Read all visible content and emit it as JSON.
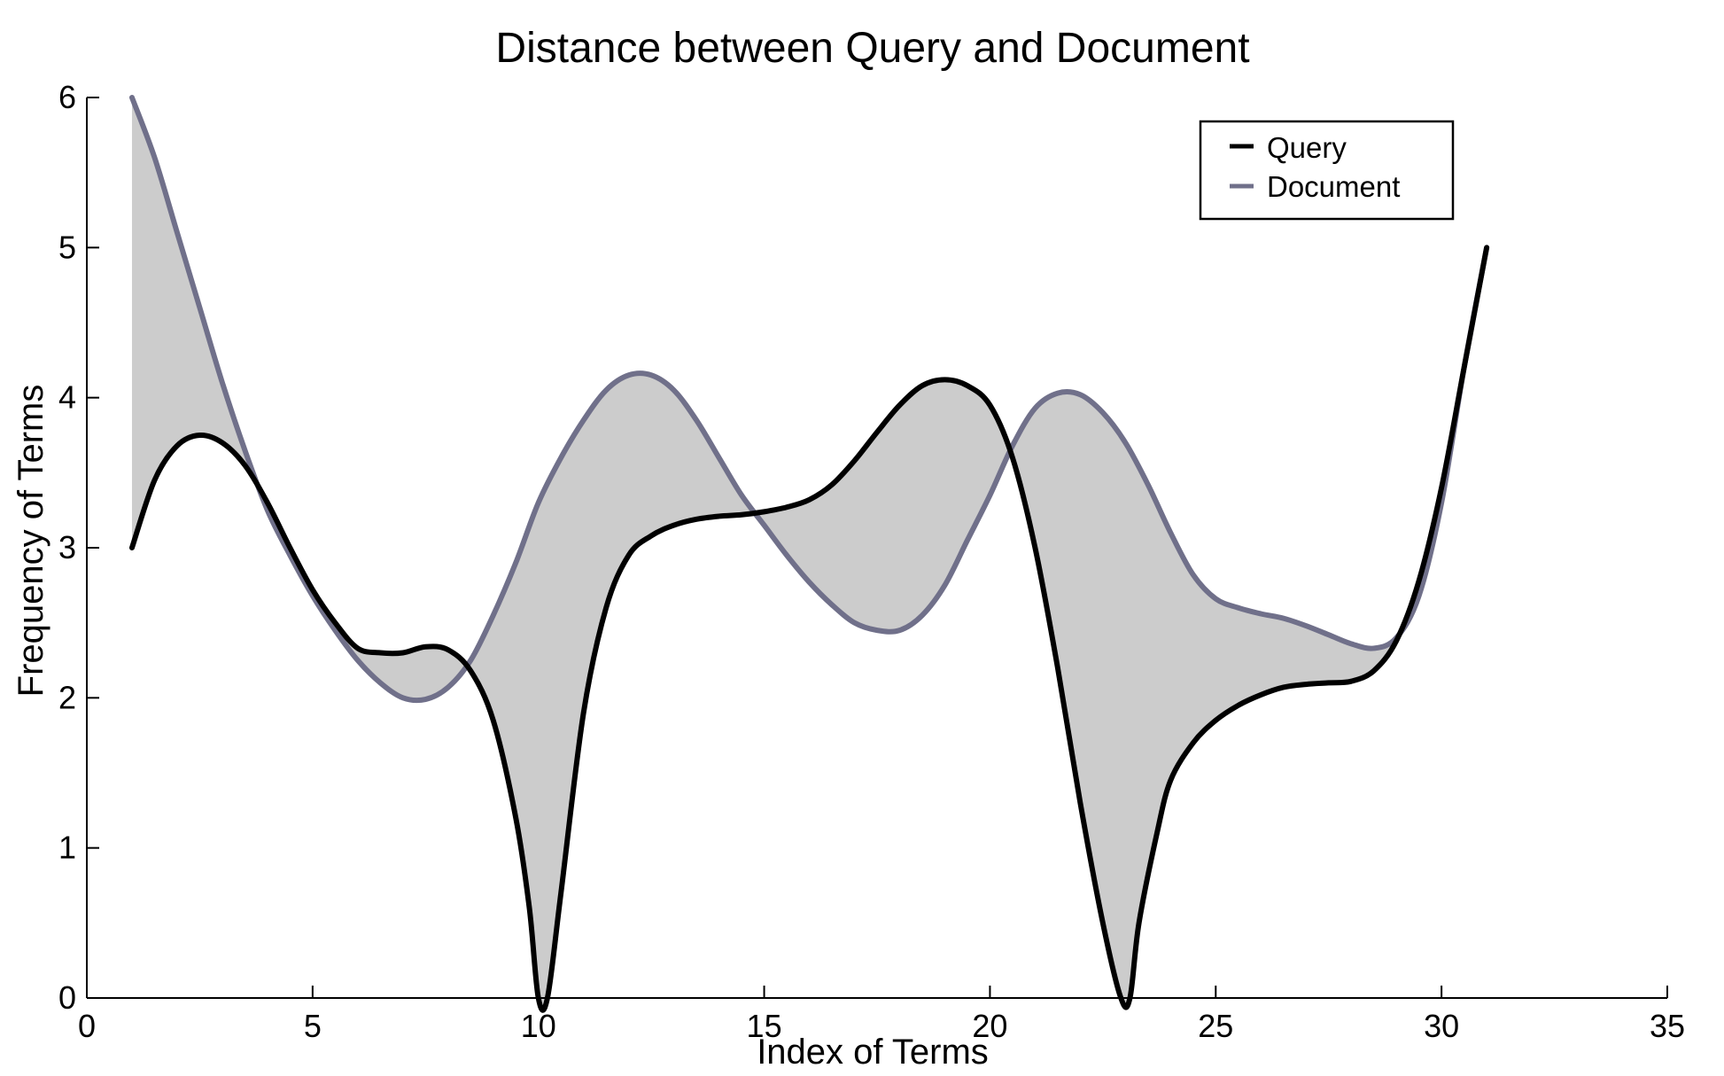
{
  "chart_data": {
    "type": "line",
    "title": "Distance between Query and Document",
    "xlabel": "Index of Terms",
    "ylabel": "Frequency of Terms",
    "xlim": [
      0,
      35
    ],
    "ylim": [
      0,
      6
    ],
    "xticks": [
      0,
      5,
      10,
      15,
      20,
      25,
      30,
      35
    ],
    "yticks": [
      0,
      1,
      2,
      3,
      4,
      5,
      6
    ],
    "xtick_labels": [
      "0",
      "5",
      "10",
      "15",
      "20",
      "25",
      "30",
      "35"
    ],
    "ytick_labels": [
      "0",
      "1",
      "2",
      "3",
      "4",
      "5",
      "6"
    ],
    "legend_position": "top-right",
    "fill_between": "series difference shaded gray",
    "colors": {
      "query": "#000000",
      "document": "#70708a",
      "fill": "#cccccc"
    },
    "series": [
      {
        "name": "Query",
        "x": [
          1,
          1.5,
          2,
          2.5,
          3,
          3.5,
          4,
          4.5,
          5,
          5.5,
          6,
          6.5,
          7,
          7.5,
          8,
          8.5,
          9,
          9.5,
          9.8,
          10,
          10.2,
          10.5,
          11,
          11.5,
          12,
          12.5,
          13,
          13.5,
          14,
          14.5,
          15,
          15.5,
          16,
          16.5,
          17,
          17.5,
          18,
          18.5,
          19,
          19.5,
          20,
          20.5,
          21,
          21.5,
          22,
          22.5,
          22.9,
          23.1,
          23.3,
          23.7,
          24,
          24.5,
          25,
          25.5,
          26,
          26.5,
          27,
          27.5,
          28,
          28.5,
          29,
          29.5,
          30,
          30.5,
          31
        ],
        "values": [
          3.0,
          3.45,
          3.68,
          3.75,
          3.7,
          3.55,
          3.3,
          3.0,
          2.72,
          2.5,
          2.33,
          2.3,
          2.3,
          2.34,
          2.32,
          2.18,
          1.85,
          1.2,
          0.6,
          0.0,
          0.0,
          0.7,
          1.9,
          2.6,
          2.95,
          3.08,
          3.15,
          3.19,
          3.21,
          3.22,
          3.24,
          3.27,
          3.32,
          3.42,
          3.58,
          3.77,
          3.95,
          4.08,
          4.12,
          4.08,
          3.95,
          3.6,
          3.0,
          2.2,
          1.3,
          0.5,
          0.0,
          0.0,
          0.5,
          1.1,
          1.45,
          1.7,
          1.85,
          1.95,
          2.02,
          2.07,
          2.09,
          2.1,
          2.11,
          2.18,
          2.38,
          2.78,
          3.4,
          4.2,
          5.0
        ]
      },
      {
        "name": "Document",
        "x": [
          1,
          1.5,
          2,
          2.5,
          3,
          3.5,
          4,
          4.5,
          5,
          5.5,
          6,
          6.5,
          7,
          7.5,
          8,
          8.5,
          9,
          9.5,
          10,
          10.5,
          11,
          11.5,
          12,
          12.5,
          13,
          13.5,
          14,
          14.5,
          15,
          15.5,
          16,
          16.5,
          17,
          17.5,
          18,
          18.5,
          19,
          19.5,
          20,
          20.5,
          21,
          21.5,
          22,
          22.5,
          23,
          23.5,
          24,
          24.5,
          25,
          25.5,
          26,
          26.5,
          27,
          27.5,
          28,
          28.5,
          29,
          29.5,
          30,
          30.5,
          31
        ],
        "values": [
          6.0,
          5.6,
          5.1,
          4.6,
          4.1,
          3.65,
          3.25,
          2.95,
          2.68,
          2.45,
          2.25,
          2.1,
          2.0,
          1.99,
          2.07,
          2.25,
          2.55,
          2.9,
          3.3,
          3.6,
          3.85,
          4.05,
          4.15,
          4.15,
          4.05,
          3.85,
          3.6,
          3.35,
          3.15,
          2.95,
          2.77,
          2.62,
          2.5,
          2.45,
          2.45,
          2.55,
          2.75,
          3.05,
          3.35,
          3.68,
          3.93,
          4.03,
          4.02,
          3.9,
          3.7,
          3.42,
          3.1,
          2.82,
          2.66,
          2.6,
          2.56,
          2.53,
          2.48,
          2.42,
          2.36,
          2.33,
          2.4,
          2.68,
          3.3,
          4.2,
          5.0
        ]
      }
    ]
  }
}
